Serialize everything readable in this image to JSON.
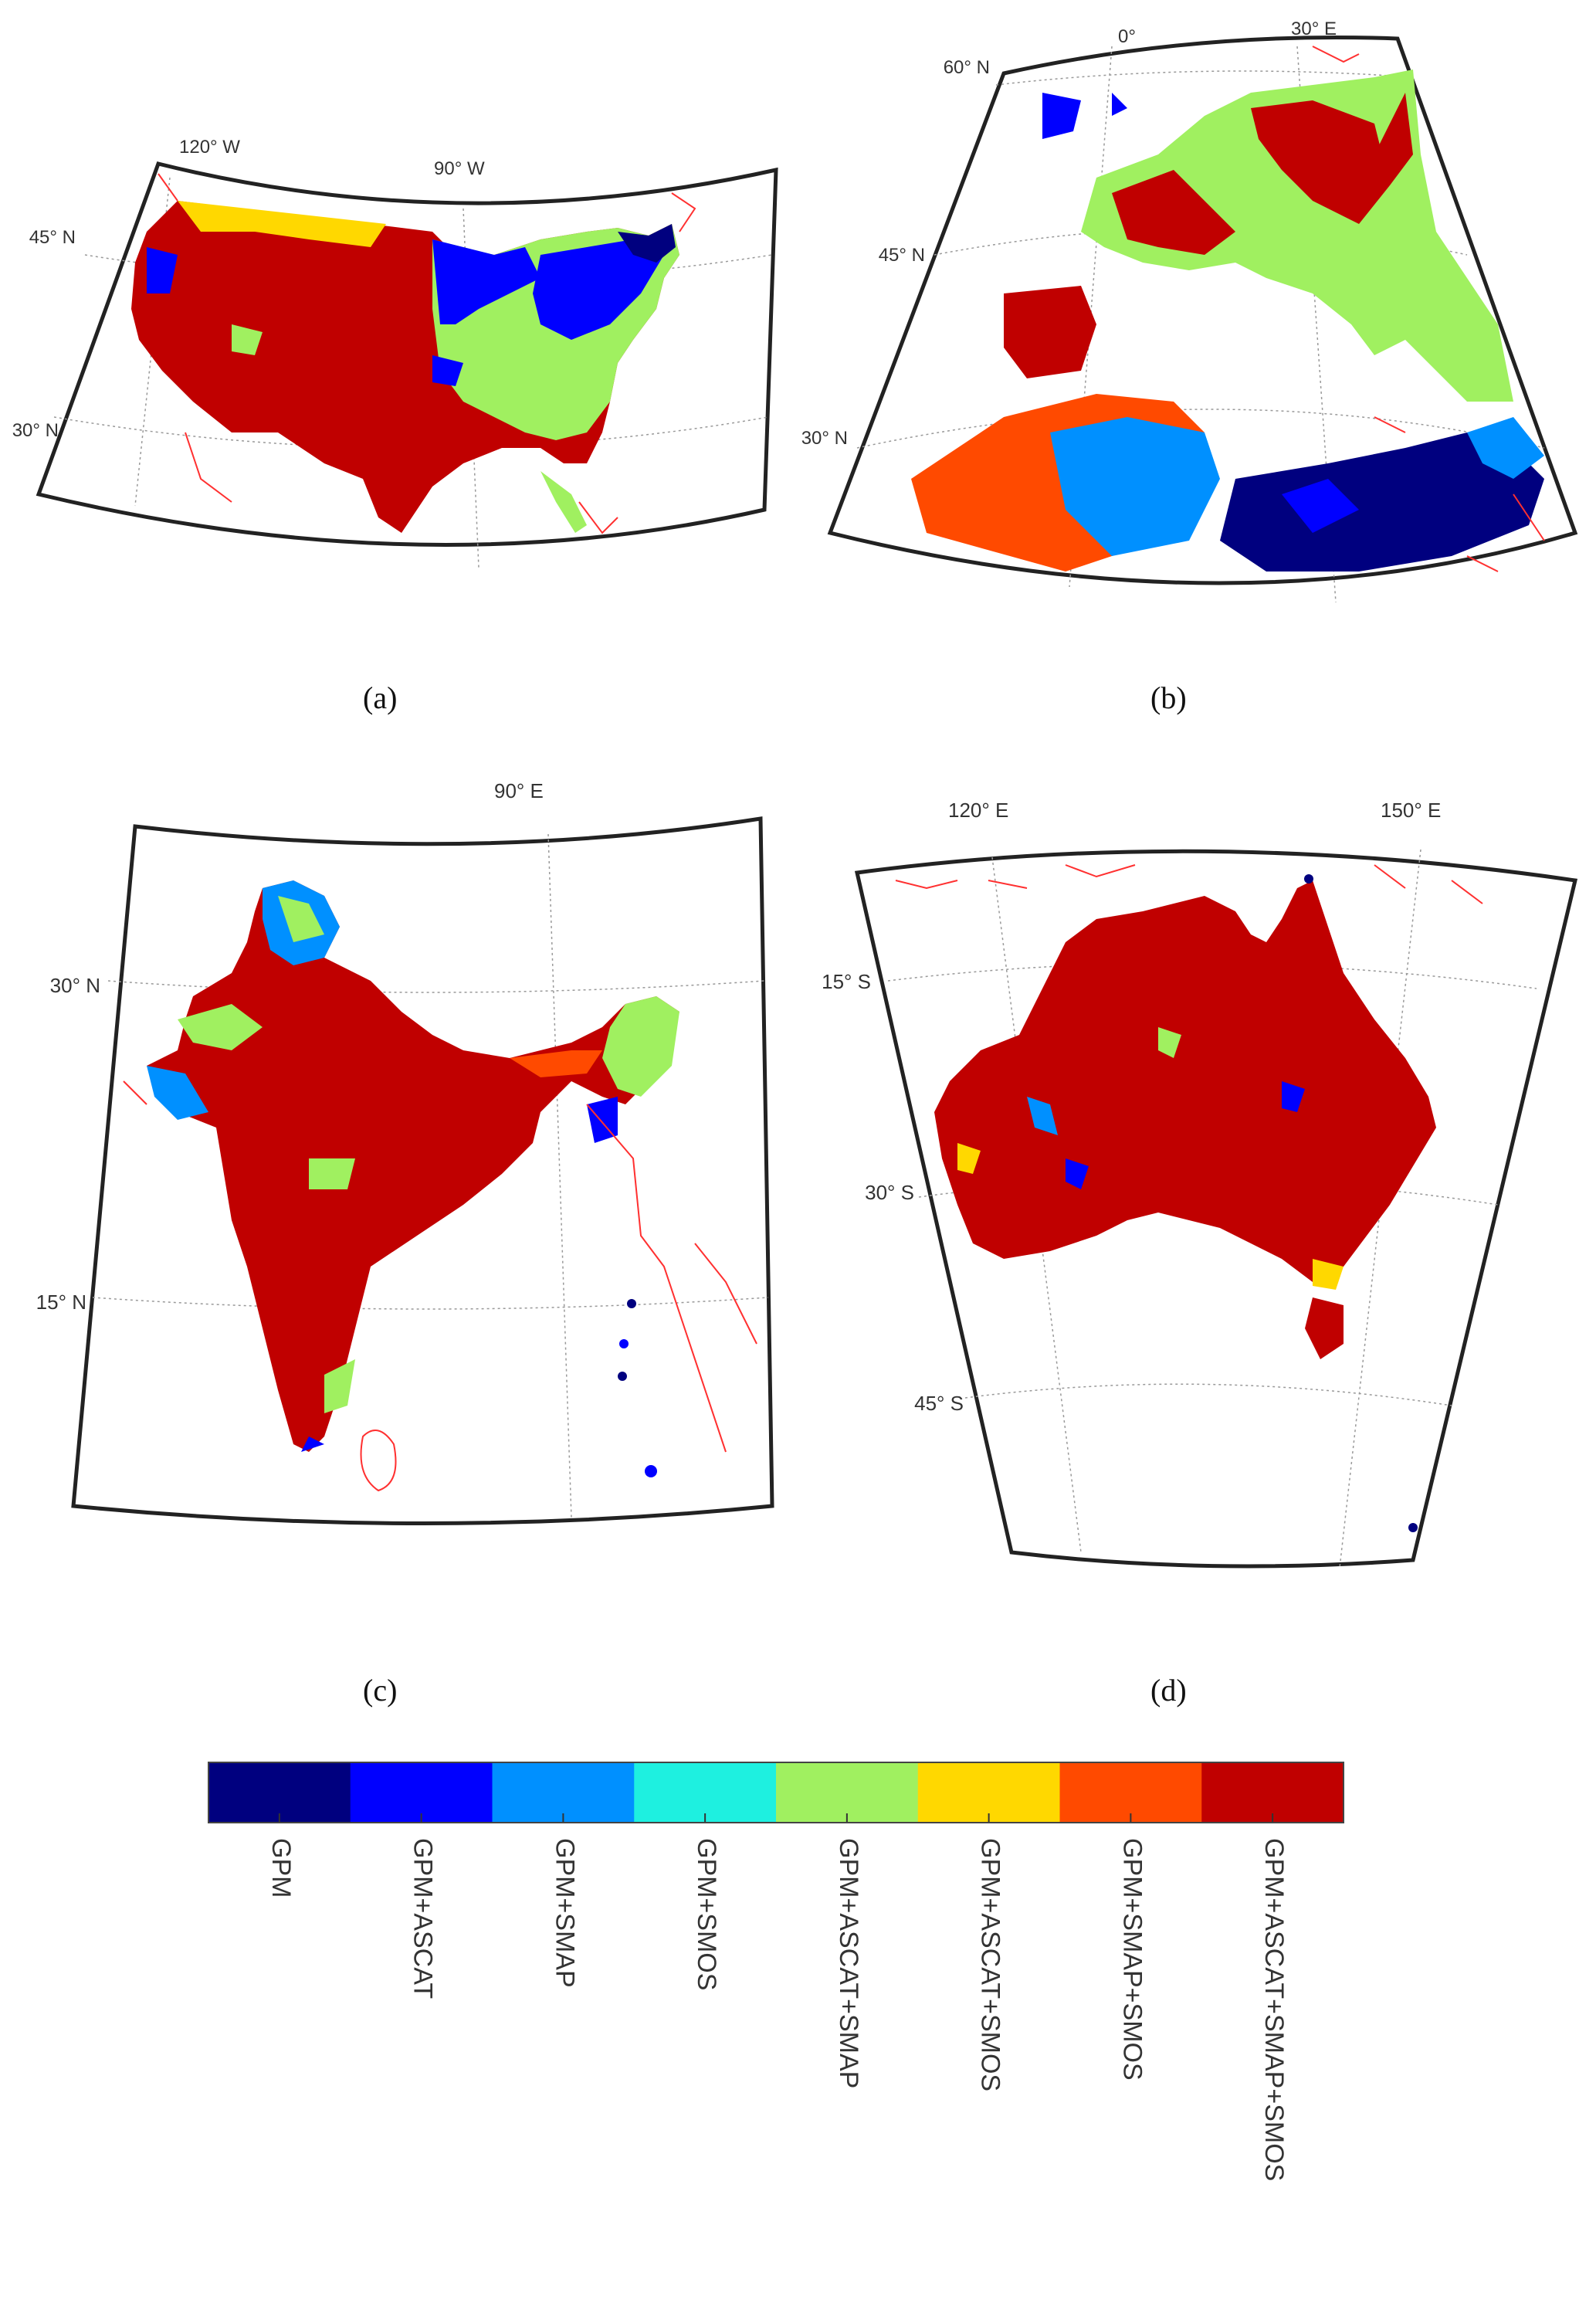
{
  "panels": [
    {
      "id": "a",
      "label": "(a)",
      "lon_labels": [
        "120° W",
        "90° W"
      ],
      "lat_labels": [
        "45° N",
        "30° N"
      ]
    },
    {
      "id": "b",
      "label": "(b)",
      "lon_labels": [
        "0°",
        "30° E"
      ],
      "lat_labels": [
        "60° N",
        "45° N",
        "30° N"
      ]
    },
    {
      "id": "c",
      "label": "(c)",
      "lon_labels": [
        "90° E"
      ],
      "lat_labels": [
        "30° N",
        "15° N"
      ]
    },
    {
      "id": "d",
      "label": "(d)",
      "lon_labels": [
        "120° E",
        "150° E"
      ],
      "lat_labels": [
        "15° S",
        "30° S",
        "45° S"
      ]
    }
  ],
  "colorbar": {
    "categories": [
      {
        "label": "GPM",
        "color": "#00007f"
      },
      {
        "label": "GPM+ASCAT",
        "color": "#0000ff"
      },
      {
        "label": "GPM+SMAP",
        "color": "#0090ff"
      },
      {
        "label": "GPM+SMOS",
        "color": "#1ef0e0"
      },
      {
        "label": "GPM+ASCAT+SMAP",
        "color": "#a0f060"
      },
      {
        "label": "GPM+ASCAT+SMOS",
        "color": "#ffd800"
      },
      {
        "label": "GPM+SMAP+SMOS",
        "color": "#ff4a00"
      },
      {
        "label": "GPM+ASCAT+SMAP+SMOS",
        "color": "#c00000"
      }
    ]
  },
  "colors": {
    "coastline": "#ff3030",
    "frame": "#222222",
    "grid": "#999999"
  }
}
